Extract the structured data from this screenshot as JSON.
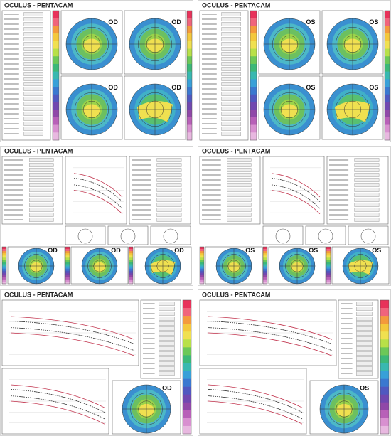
{
  "panels": [
    {
      "title": "OCULUS - PENTACAM",
      "eye": "OD"
    },
    {
      "title": "OCULUS - PENTACAM",
      "eye": "OS"
    },
    {
      "title": "OCULUS - PENTACAM",
      "eye": "OD"
    },
    {
      "title": "OCULUS - PENTACAM",
      "eye": "OS"
    },
    {
      "title": "OCULUS - PENTACAM",
      "eye": "OD"
    },
    {
      "title": "OCULUS - PENTACAM",
      "eye": "OS"
    }
  ]
}
